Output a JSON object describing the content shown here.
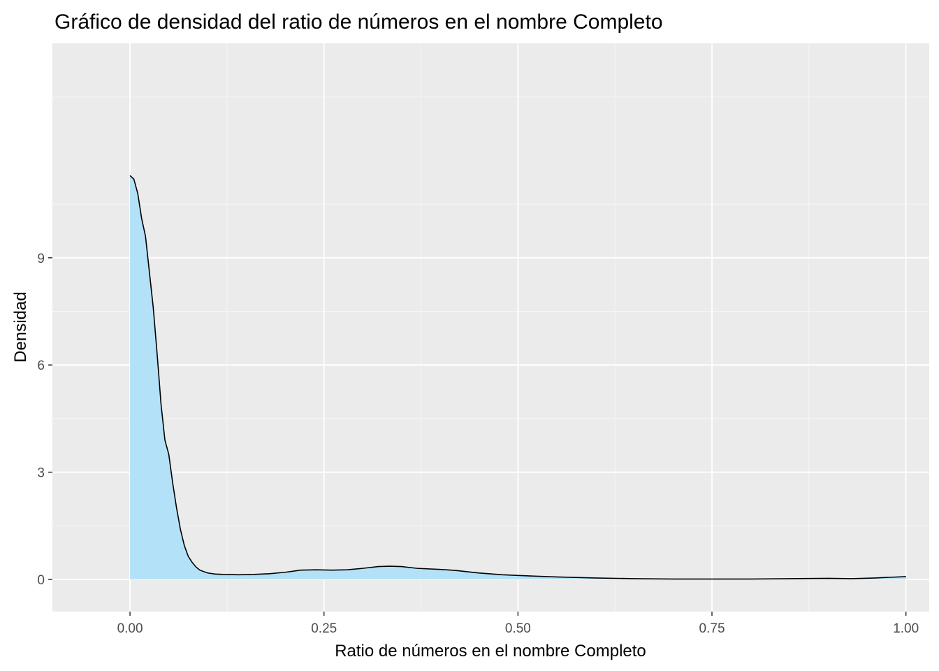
{
  "chart_data": {
    "type": "area",
    "title": "Gráfico de densidad del ratio de números en el nombre Completo",
    "xlabel": "Ratio de números en el nombre Completo",
    "ylabel": "Densidad",
    "xlim": [
      -0.1,
      1.03
    ],
    "ylim": [
      -0.9,
      15.0
    ],
    "x_ticks": [
      0.0,
      0.25,
      0.5,
      0.75,
      1.0
    ],
    "x_tick_labels": [
      "0.00",
      "0.25",
      "0.50",
      "0.75",
      "1.00"
    ],
    "y_ticks": [
      0,
      3,
      6,
      9
    ],
    "y_tick_labels": [
      "0",
      "3",
      "6",
      "9"
    ],
    "grid": true,
    "legend": "none",
    "colors": {
      "panel_background": "#ebebeb",
      "grid_major": "#ffffff",
      "fill": "#b3e2f8",
      "line": "#000000"
    },
    "series": [
      {
        "x": [
          0.0,
          0.005,
          0.01,
          0.015,
          0.02,
          0.025,
          0.03,
          0.035,
          0.04,
          0.045,
          0.05,
          0.055,
          0.06,
          0.065,
          0.07,
          0.075,
          0.08,
          0.085,
          0.09,
          0.1,
          0.11,
          0.12,
          0.14,
          0.16,
          0.18,
          0.2,
          0.22,
          0.24,
          0.26,
          0.28,
          0.3,
          0.32,
          0.335,
          0.35,
          0.37,
          0.4,
          0.42,
          0.45,
          0.48,
          0.5,
          0.55,
          0.6,
          0.65,
          0.7,
          0.75,
          0.8,
          0.85,
          0.9,
          0.93,
          0.96,
          1.0
        ],
        "y": [
          11.3,
          11.2,
          10.8,
          10.1,
          9.6,
          8.6,
          7.6,
          6.3,
          4.9,
          3.9,
          3.5,
          2.7,
          2.0,
          1.4,
          0.95,
          0.65,
          0.48,
          0.35,
          0.26,
          0.18,
          0.15,
          0.14,
          0.13,
          0.14,
          0.16,
          0.2,
          0.26,
          0.27,
          0.26,
          0.27,
          0.31,
          0.36,
          0.37,
          0.36,
          0.31,
          0.28,
          0.25,
          0.18,
          0.13,
          0.11,
          0.07,
          0.04,
          0.02,
          0.01,
          0.01,
          0.01,
          0.02,
          0.03,
          0.02,
          0.04,
          0.08
        ]
      }
    ]
  }
}
